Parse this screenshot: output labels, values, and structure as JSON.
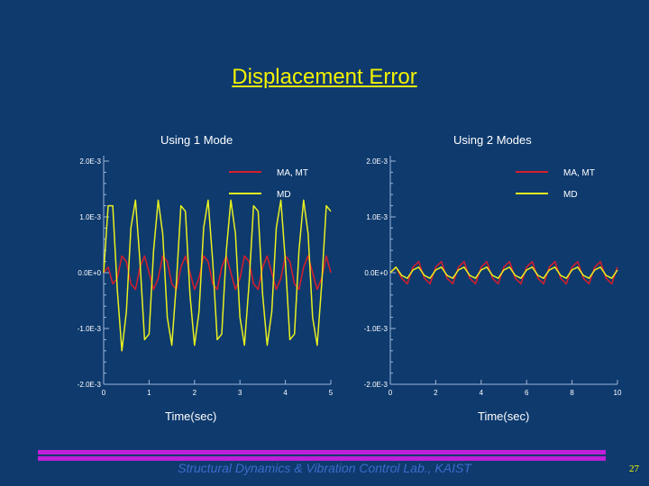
{
  "slide": {
    "title": "Displacement Error",
    "footer": "Structural Dynamics & Vibration Control Lab., KAIST",
    "page_number": "27",
    "colors": {
      "background": "#0e3a6e",
      "title": "#f2f200",
      "footer_bar": "#c020d8",
      "footer_text": "#3c6ccc"
    }
  },
  "chart_data": [
    {
      "type": "line",
      "title": "Using 1 Mode",
      "xlabel": "Time(sec)",
      "ylabel": "",
      "xlim": [
        0,
        5
      ],
      "ylim": [
        -0.002,
        0.002
      ],
      "x_tick_labels": [
        "0",
        "1",
        "2",
        "3",
        "4",
        "5"
      ],
      "y_tick_labels": [
        "2.0E-3",
        "1.0E-3",
        "0.0E+0",
        "-1.0E-3",
        "-2.0E-3"
      ],
      "grid": false,
      "legend_position": "top-right",
      "series": [
        {
          "name": "MA, MT",
          "color": "#d81e2a",
          "x": [
            0,
            0.1,
            0.2,
            0.3,
            0.4,
            0.5,
            0.6,
            0.7,
            0.8,
            0.9,
            1.0,
            1.1,
            1.2,
            1.3,
            1.4,
            1.5,
            1.6,
            1.7,
            1.8,
            1.9,
            2.0,
            2.1,
            2.2,
            2.3,
            2.4,
            2.5,
            2.6,
            2.7,
            2.8,
            2.9,
            3.0,
            3.1,
            3.2,
            3.3,
            3.4,
            3.5,
            3.6,
            3.7,
            3.8,
            3.9,
            4.0,
            4.1,
            4.2,
            4.3,
            4.4,
            4.5,
            4.6,
            4.7,
            4.8,
            4.9,
            5.0
          ],
          "y": [
            0.0,
            0.0001,
            -0.0002,
            -0.0001,
            0.0003,
            0.0002,
            -0.0002,
            -0.0003,
            0.0001,
            0.0003,
            0.0,
            -0.0003,
            -0.0001,
            0.0003,
            0.0002,
            -0.0002,
            -0.0003,
            0.0001,
            0.0003,
            0.0,
            -0.0003,
            -0.0001,
            0.0003,
            0.0002,
            -0.0002,
            -0.0003,
            0.0001,
            0.0003,
            0.0,
            -0.0003,
            -0.0001,
            0.0003,
            0.0002,
            -0.0002,
            -0.0003,
            0.0001,
            0.0003,
            0.0,
            -0.0003,
            -0.0001,
            0.0003,
            0.0002,
            -0.0002,
            -0.0003,
            0.0001,
            0.0003,
            0.0,
            -0.0003,
            -0.0001,
            0.0003,
            0.0
          ]
        },
        {
          "name": "MD",
          "color": "#e8f020",
          "x": [
            0,
            0.1,
            0.2,
            0.3,
            0.4,
            0.5,
            0.6,
            0.7,
            0.8,
            0.9,
            1.0,
            1.1,
            1.2,
            1.3,
            1.4,
            1.5,
            1.6,
            1.7,
            1.8,
            1.9,
            2.0,
            2.1,
            2.2,
            2.3,
            2.4,
            2.5,
            2.6,
            2.7,
            2.8,
            2.9,
            3.0,
            3.1,
            3.2,
            3.3,
            3.4,
            3.5,
            3.6,
            3.7,
            3.8,
            3.9,
            4.0,
            4.1,
            4.2,
            4.3,
            4.4,
            4.5,
            4.6,
            4.7,
            4.8,
            4.9,
            5.0
          ],
          "y": [
            0.0,
            0.0012,
            0.0012,
            -0.0003,
            -0.0014,
            -0.0007,
            0.0008,
            0.0013,
            0.0002,
            -0.0012,
            -0.0011,
            0.0004,
            0.0013,
            0.0007,
            -0.0008,
            -0.0013,
            -0.0002,
            0.0012,
            0.0011,
            -0.0004,
            -0.0013,
            -0.0007,
            0.0008,
            0.0013,
            0.0002,
            -0.0012,
            -0.0011,
            0.0004,
            0.0013,
            0.0007,
            -0.0008,
            -0.0013,
            -0.0002,
            0.0012,
            0.0011,
            -0.0004,
            -0.0013,
            -0.0007,
            0.0008,
            0.0013,
            0.0002,
            -0.0012,
            -0.0011,
            0.0004,
            0.0013,
            0.0007,
            -0.0008,
            -0.0013,
            -0.0002,
            0.0012,
            0.0011
          ]
        }
      ]
    },
    {
      "type": "line",
      "title": "Using 2 Modes",
      "xlabel": "Time(sec)",
      "ylabel": "",
      "xlim": [
        0,
        10
      ],
      "ylim": [
        -0.002,
        0.002
      ],
      "x_tick_labels": [
        "0",
        "2",
        "4",
        "6",
        "8",
        "10"
      ],
      "y_tick_labels": [
        "2.0E-3",
        "1.0E-3",
        "0.0E+0",
        "-1.0E-3",
        "-2.0E-3"
      ],
      "grid": false,
      "legend_position": "top-right",
      "series": [
        {
          "name": "MA, MT",
          "color": "#d81e2a",
          "x": [
            0,
            0.25,
            0.5,
            0.75,
            1.0,
            1.25,
            1.5,
            1.75,
            2.0,
            2.25,
            2.5,
            2.75,
            3.0,
            3.25,
            3.5,
            3.75,
            4.0,
            4.25,
            4.5,
            4.75,
            5.0,
            5.25,
            5.5,
            5.75,
            6.0,
            6.25,
            6.5,
            6.75,
            7.0,
            7.25,
            7.5,
            7.75,
            8.0,
            8.25,
            8.5,
            8.75,
            9.0,
            9.25,
            9.5,
            9.75,
            10.0
          ],
          "y": [
            0.0,
            0.0001,
            -0.0001,
            -0.0002,
            0.0001,
            0.0002,
            -0.0001,
            -0.0002,
            0.0001,
            0.0002,
            -0.0001,
            -0.0002,
            0.0001,
            0.0002,
            -0.0001,
            -0.0002,
            0.0001,
            0.0002,
            -0.0001,
            -0.0002,
            0.0001,
            0.0002,
            -0.0001,
            -0.0002,
            0.0001,
            0.0002,
            -0.0001,
            -0.0002,
            0.0001,
            0.0002,
            -0.0001,
            -0.0002,
            0.0001,
            0.0002,
            -0.0001,
            -0.0002,
            0.0001,
            0.0002,
            -0.0001,
            -0.0002,
            0.0001
          ]
        },
        {
          "name": "MD",
          "color": "#e8f020",
          "x": [
            0,
            0.25,
            0.5,
            0.75,
            1.0,
            1.25,
            1.5,
            1.75,
            2.0,
            2.25,
            2.5,
            2.75,
            3.0,
            3.25,
            3.5,
            3.75,
            4.0,
            4.25,
            4.5,
            4.75,
            5.0,
            5.25,
            5.5,
            5.75,
            6.0,
            6.25,
            6.5,
            6.75,
            7.0,
            7.25,
            7.5,
            7.75,
            8.0,
            8.25,
            8.5,
            8.75,
            9.0,
            9.25,
            9.5,
            9.75,
            10.0
          ],
          "y": [
            0.0,
            0.0001,
            -5e-05,
            -0.0001,
            5e-05,
            0.0001,
            -5e-05,
            -0.0001,
            5e-05,
            0.0001,
            -5e-05,
            -0.0001,
            5e-05,
            0.0001,
            -5e-05,
            -0.0001,
            5e-05,
            0.0001,
            -5e-05,
            -0.0001,
            5e-05,
            0.0001,
            -5e-05,
            -0.0001,
            5e-05,
            0.0001,
            -5e-05,
            -0.0001,
            5e-05,
            0.0001,
            -5e-05,
            -0.0001,
            5e-05,
            0.0001,
            -5e-05,
            -0.0001,
            5e-05,
            0.0001,
            -5e-05,
            -0.0001,
            5e-05
          ]
        }
      ]
    }
  ]
}
